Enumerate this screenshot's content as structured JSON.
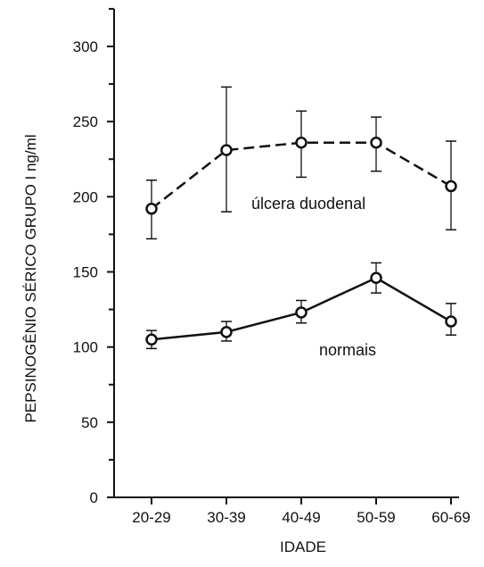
{
  "chart_data": {
    "type": "line",
    "xlabel": "IDADE",
    "ylabel": "PEPSINOGÊNIO SÉRICO GRUPO I ng/ml",
    "categories": [
      "20-29",
      "30-39",
      "40-49",
      "50-59",
      "60-69"
    ],
    "ylim": [
      0,
      300
    ],
    "yticks": [
      "0",
      "50",
      "100",
      "150",
      "200",
      "250",
      "300"
    ],
    "grid": false,
    "legend": "none",
    "series": [
      {
        "name": "úlcera duodenal",
        "style": "dashed",
        "values": [
          192,
          231,
          236,
          236,
          207
        ],
        "error_low": [
          172,
          190,
          213,
          217,
          178
        ],
        "error_high": [
          211,
          273,
          257,
          253,
          237
        ]
      },
      {
        "name": "normais",
        "style": "solid",
        "values": [
          105,
          110,
          123,
          146,
          117
        ],
        "error_low": [
          99,
          104,
          116,
          136,
          108
        ],
        "error_high": [
          111,
          117,
          131,
          156,
          129
        ]
      }
    ],
    "colors": {
      "ink": "#111111",
      "background": "#ffffff"
    }
  }
}
